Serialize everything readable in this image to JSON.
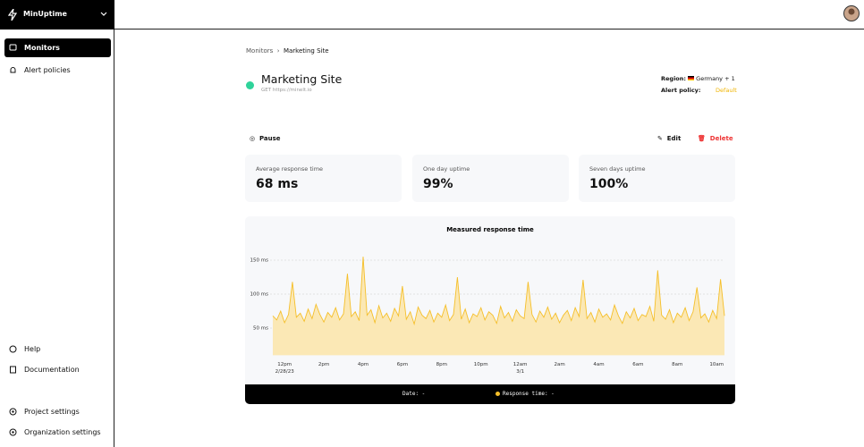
{
  "sidebar": {
    "brand": "MinUptime",
    "nav": [
      "Monitors",
      "Alert policies"
    ],
    "bottom": [
      "Help",
      "Documentation",
      "Project settings",
      "Organization settings"
    ]
  },
  "breadcrumb": [
    "Monitors",
    "Marketing Site"
  ],
  "monitor": {
    "title": "Marketing Site",
    "url": "GET https://minelt.io",
    "region_label": "Region:",
    "region": "Germany + 1",
    "policy_label": "Alert policy:",
    "policy": "Default"
  },
  "actions": {
    "pause": "Pause",
    "edit": "Edit",
    "delete": "Delete"
  },
  "stats": [
    {
      "label": "Average response time",
      "value": "68 ms"
    },
    {
      "label": "One day uptime",
      "value": "99%"
    },
    {
      "label": "Seven days uptime",
      "value": "100%"
    }
  ],
  "footer": {
    "date": "Date: -",
    "response": "Response time: -"
  },
  "chart_data": {
    "type": "area",
    "title": "Measured response time",
    "color": "#f5bf2a",
    "fill": "#fbe8b5",
    "ylim": [
      10,
      160
    ],
    "yticks": [
      {
        "value": 50,
        "label": "50 ms"
      },
      {
        "value": 100,
        "label": "100 ms"
      },
      {
        "value": 150,
        "label": "150 ms"
      }
    ],
    "grid": true,
    "categories": [
      null,
      null,
      null,
      "12pm\n2/28/23",
      null,
      null,
      null,
      null,
      null,
      null,
      null,
      null,
      null,
      "2pm",
      null,
      null,
      null,
      null,
      null,
      null,
      null,
      null,
      null,
      "4pm",
      null,
      null,
      null,
      null,
      null,
      null,
      null,
      null,
      null,
      "6pm",
      null,
      null,
      null,
      null,
      null,
      null,
      null,
      null,
      null,
      "8pm",
      null,
      null,
      null,
      null,
      null,
      null,
      null,
      null,
      null,
      "10pm",
      null,
      null,
      null,
      null,
      null,
      null,
      null,
      null,
      null,
      "12am\n3/1",
      null,
      null,
      null,
      null,
      null,
      null,
      null,
      null,
      null,
      "2am",
      null,
      null,
      null,
      null,
      null,
      null,
      null,
      null,
      null,
      "4am",
      null,
      null,
      null,
      null,
      null,
      null,
      null,
      null,
      null,
      "6am",
      null,
      null,
      null,
      null,
      null,
      null,
      null,
      null,
      null,
      "8am",
      null,
      null,
      null,
      null,
      null,
      null,
      null,
      null,
      null,
      "10am",
      null,
      null
    ],
    "values": [
      68,
      62,
      75,
      58,
      70,
      118,
      66,
      72,
      60,
      78,
      64,
      85,
      70,
      59,
      73,
      66,
      80,
      62,
      71,
      130,
      67,
      74,
      61,
      155,
      69,
      77,
      58,
      83,
      65,
      72,
      60,
      79,
      68,
      112,
      63,
      74,
      56,
      81,
      69,
      64,
      76,
      59,
      72,
      66,
      84,
      61,
      70,
      125,
      63,
      78,
      58,
      71,
      67,
      80,
      62,
      74,
      69,
      57,
      82,
      65,
      73,
      60,
      77,
      68,
      64,
      118,
      70,
      59,
      75,
      66,
      81,
      63,
      72,
      58,
      69,
      76,
      61,
      80,
      67,
      121,
      64,
      73,
      59,
      78,
      66,
      71,
      62,
      84,
      68,
      57,
      74,
      65,
      79,
      61,
      70,
      67,
      82,
      60,
      135,
      69,
      63,
      77,
      58,
      72,
      66,
      80,
      61,
      74,
      110,
      65,
      71,
      59,
      76,
      64,
      122,
      68
    ]
  }
}
